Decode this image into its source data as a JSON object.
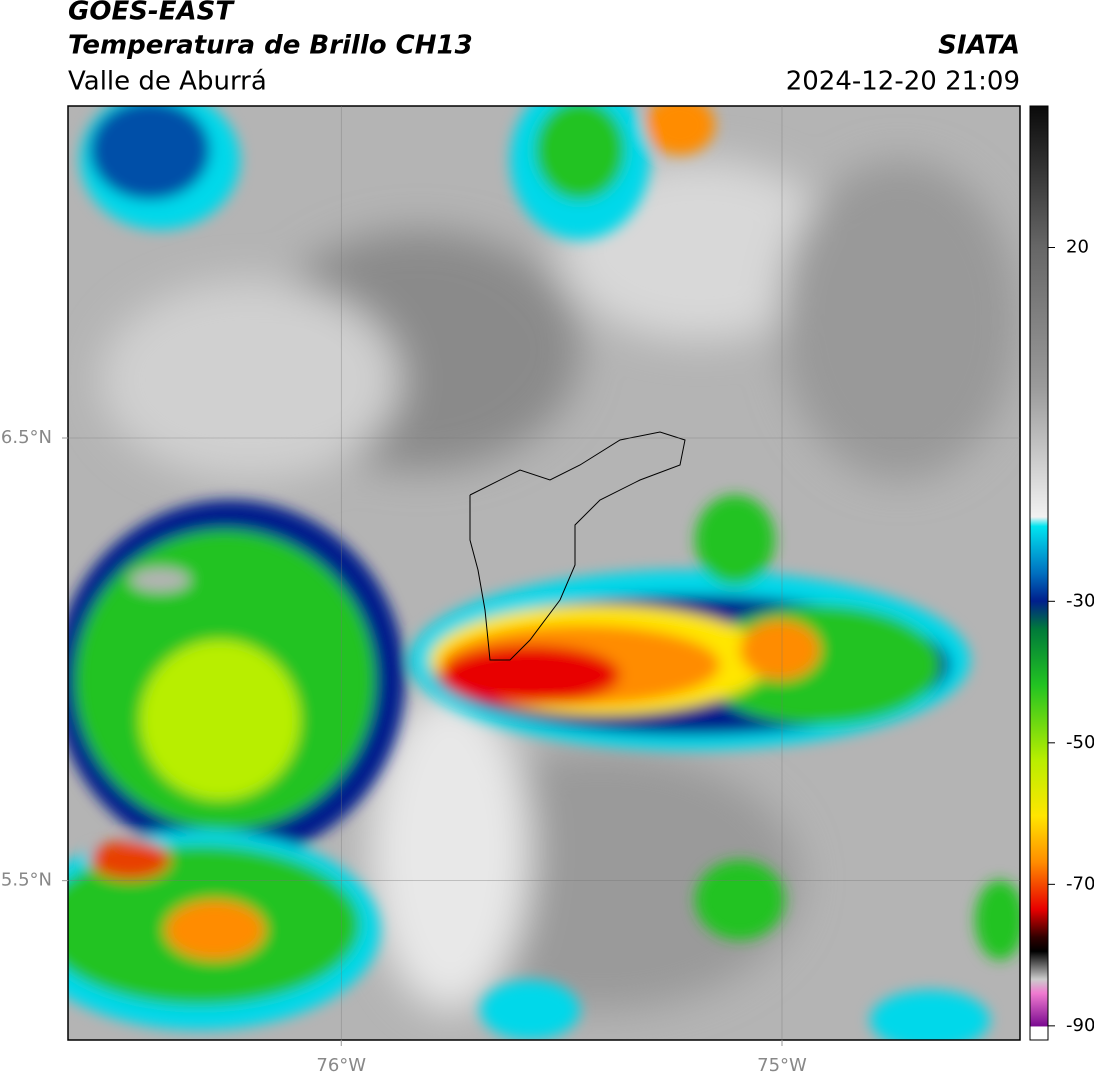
{
  "chart_data": {
    "type": "map",
    "title": "GOES-EAST",
    "subtitle": "Temperatura de Brillo CH13",
    "source": "SIATA",
    "region": "Valle de Aburrá",
    "datetime": "2024-12-20 21:09",
    "xlim": [
      -76.62,
      -74.46
    ],
    "ylim": [
      5.14,
      7.25
    ],
    "xticks": [
      {
        "value": -76,
        "label": "76°W"
      },
      {
        "value": -75,
        "label": "75°W"
      }
    ],
    "yticks": [
      {
        "value": 5.5,
        "label": "5.5°N"
      },
      {
        "value": 6.5,
        "label": "6.5°N"
      }
    ],
    "grid": true,
    "colorbar": {
      "lim": [
        -92,
        40
      ],
      "ticks": [
        -90,
        -70,
        -50,
        -30,
        20
      ]
    }
  }
}
